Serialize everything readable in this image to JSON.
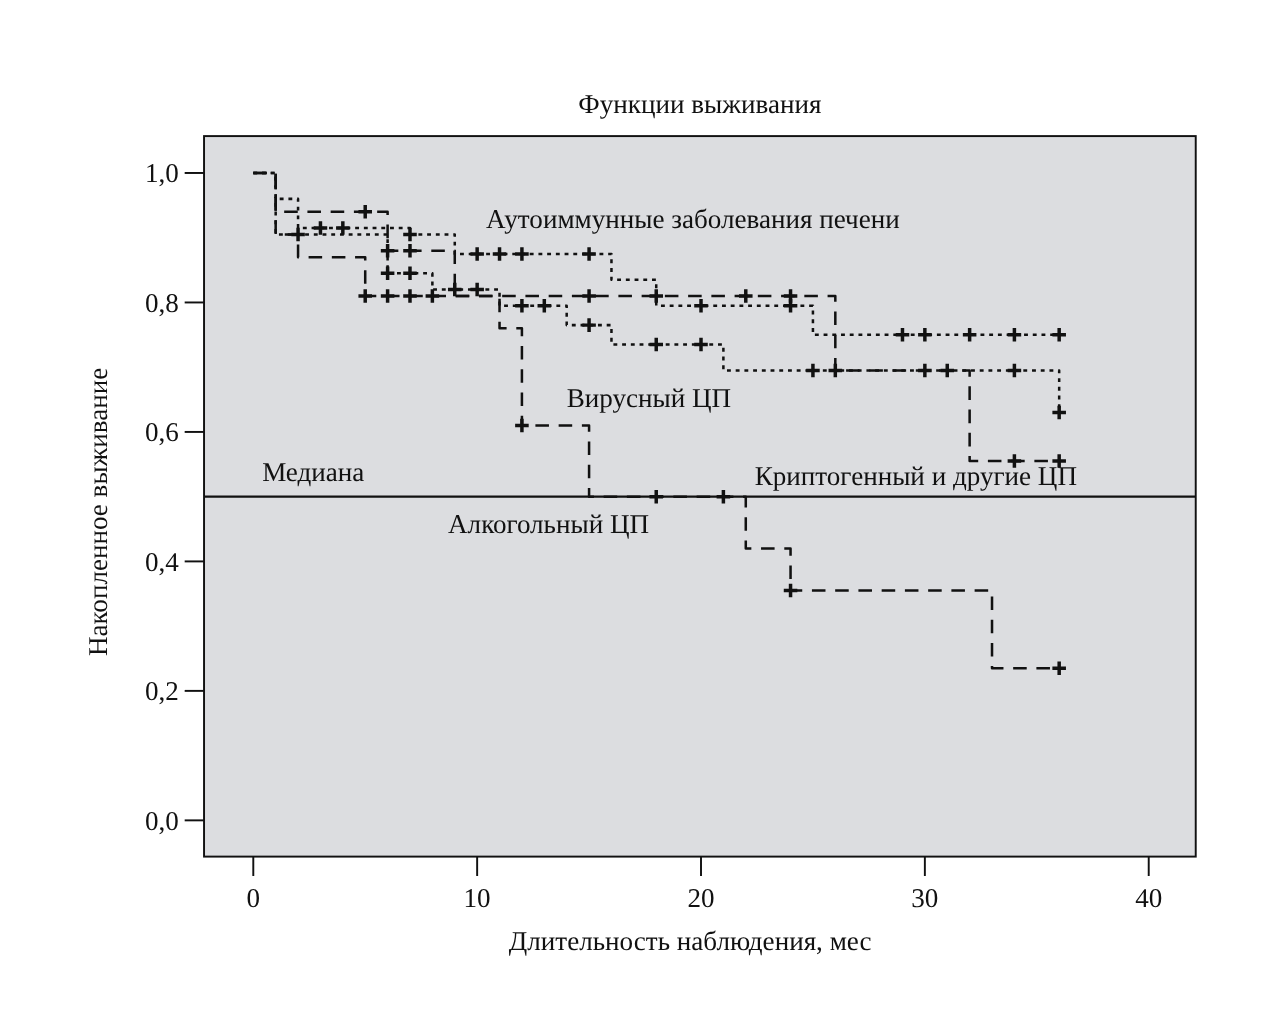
{
  "chart_data": {
    "type": "step",
    "title": "Функции выживания",
    "xlabel": "Длительность наблюдения, мес",
    "ylabel": "Накопленное выживание",
    "xlim": [
      -2.2,
      42.1
    ],
    "ylim": [
      -0.056,
      1.057
    ],
    "xticks": [
      0,
      10,
      20,
      30,
      40
    ],
    "yticks": [
      {
        "value": 0,
        "label": "0,0"
      },
      {
        "value": 0.2,
        "label": "0,2"
      },
      {
        "value": 0.4,
        "label": "0,4"
      },
      {
        "value": 0.6,
        "label": "0,6"
      },
      {
        "value": 0.8,
        "label": "0,8"
      },
      {
        "value": 1,
        "label": "1,0"
      }
    ],
    "grid": false,
    "series": [
      {
        "name": "Аутоиммунные заболевания печени",
        "color": "#111111",
        "line_style": "dotted",
        "x": [
          0,
          1,
          2,
          7,
          9,
          16,
          18,
          25,
          36
        ],
        "values": [
          1,
          0.96,
          0.915,
          0.905,
          0.875,
          0.835,
          0.795,
          0.75,
          0.75
        ]
      },
      {
        "name": "Вирусный ЦП",
        "color": "#111111",
        "line_style": "dotted",
        "x": [
          0,
          1,
          6,
          8,
          11,
          14,
          16,
          21,
          36
        ],
        "values": [
          1,
          0.905,
          0.845,
          0.82,
          0.795,
          0.765,
          0.735,
          0.695,
          0.63
        ]
      },
      {
        "name": "Криптогенный и другие ЦП",
        "color": "#111111",
        "line_style": "dashed",
        "x": [
          0,
          1,
          6,
          9,
          26,
          32,
          36
        ],
        "values": [
          1,
          0.94,
          0.88,
          0.81,
          0.695,
          0.555,
          0.555
        ]
      },
      {
        "name": "Алкогольный ЦП",
        "color": "#111111",
        "line_style": "dashed",
        "x": [
          0,
          1,
          2,
          5,
          11,
          12,
          15,
          22,
          24,
          33,
          36
        ],
        "values": [
          1,
          0.905,
          0.87,
          0.81,
          0.76,
          0.61,
          0.5,
          0.42,
          0.355,
          0.235,
          0.235
        ]
      },
      {
        "type": "scatter",
        "color": "#111111",
        "marker": "cross",
        "x": [
          3,
          4,
          7,
          10,
          11,
          12,
          15,
          20,
          24,
          29,
          30,
          32,
          34,
          36,
          2,
          6,
          7,
          9,
          10,
          12,
          13,
          15,
          18,
          20,
          25,
          30,
          31,
          34,
          36,
          5,
          6,
          7,
          15,
          18,
          22,
          24,
          26,
          34,
          36,
          5,
          6,
          7,
          8,
          12,
          18,
          21,
          24,
          36
        ],
        "values": [
          0.915,
          0.915,
          0.905,
          0.875,
          0.875,
          0.875,
          0.875,
          0.795,
          0.795,
          0.75,
          0.75,
          0.75,
          0.75,
          0.75,
          0.905,
          0.845,
          0.845,
          0.82,
          0.82,
          0.795,
          0.795,
          0.765,
          0.735,
          0.735,
          0.695,
          0.695,
          0.695,
          0.695,
          0.63,
          0.94,
          0.88,
          0.88,
          0.81,
          0.81,
          0.81,
          0.81,
          0.695,
          0.555,
          0.555,
          0.81,
          0.81,
          0.81,
          0.81,
          0.61,
          0.5,
          0.5,
          0.355,
          0.235
        ]
      }
    ],
    "ref_lines": [
      {
        "axis": "y",
        "value": 0.5,
        "label": "Медиана",
        "color": "#111111",
        "line_style": "solid"
      }
    ]
  }
}
